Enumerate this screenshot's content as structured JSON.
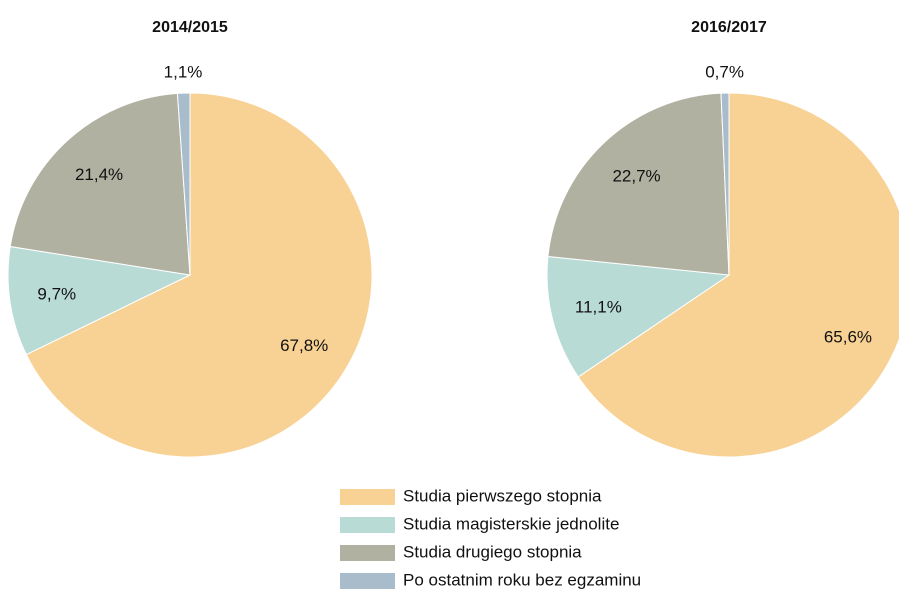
{
  "chart_data": [
    {
      "type": "pie",
      "title": "2014/2015",
      "values": [
        67.8,
        9.7,
        21.4,
        1.1
      ],
      "value_labels": [
        "67,8%",
        "9,7%",
        "21,4%",
        "1,1%"
      ]
    },
    {
      "type": "pie",
      "title": "2016/2017",
      "values": [
        65.6,
        11.1,
        22.7,
        0.7
      ],
      "value_labels": [
        "65,6%",
        "11,1%",
        "22,7%",
        "0,7%"
      ]
    }
  ],
  "legend": {
    "labels": [
      "Studia pierwszego stopnia",
      "Studia magisterskie jednolite",
      "Studia drugiego stopnia",
      "Po ostatnim roku bez egzaminu"
    ],
    "colors": [
      "#f8d294",
      "#b9dbd6",
      "#b1b1a1",
      "#a9bccb"
    ]
  }
}
